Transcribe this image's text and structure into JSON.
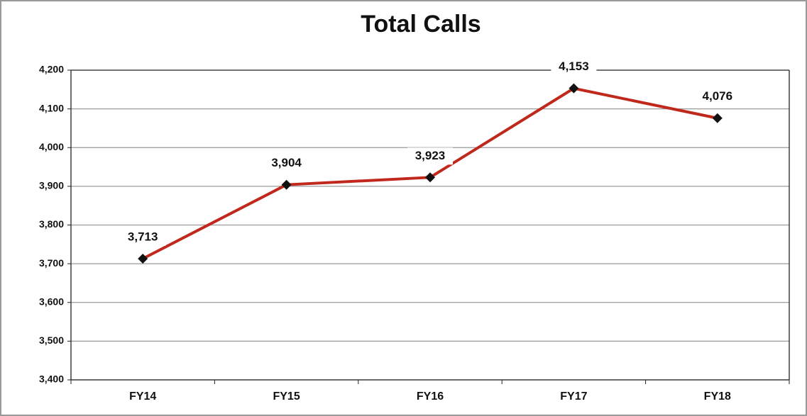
{
  "chart_data": {
    "type": "line",
    "title": "Total Calls",
    "categories": [
      "FY14",
      "FY15",
      "FY16",
      "FY17",
      "FY18"
    ],
    "values": [
      3713,
      3904,
      3923,
      4153,
      4076
    ],
    "value_labels": [
      "3,713",
      "3,904",
      "3,923",
      "4,153",
      "4,076"
    ],
    "color": "#c0281c",
    "ylim": [
      3400,
      4200
    ],
    "yticks": [
      {
        "value": 3400,
        "label": "3,400"
      },
      {
        "value": 3500,
        "label": "3,500"
      },
      {
        "value": 3600,
        "label": "3,600"
      },
      {
        "value": 3700,
        "label": "3,700"
      },
      {
        "value": 3800,
        "label": "3,800"
      },
      {
        "value": 3900,
        "label": "3,900"
      },
      {
        "value": 4000,
        "label": "4,000"
      },
      {
        "value": 4100,
        "label": "4,100"
      },
      {
        "value": 4200,
        "label": "4,200"
      }
    ],
    "grid": true
  }
}
